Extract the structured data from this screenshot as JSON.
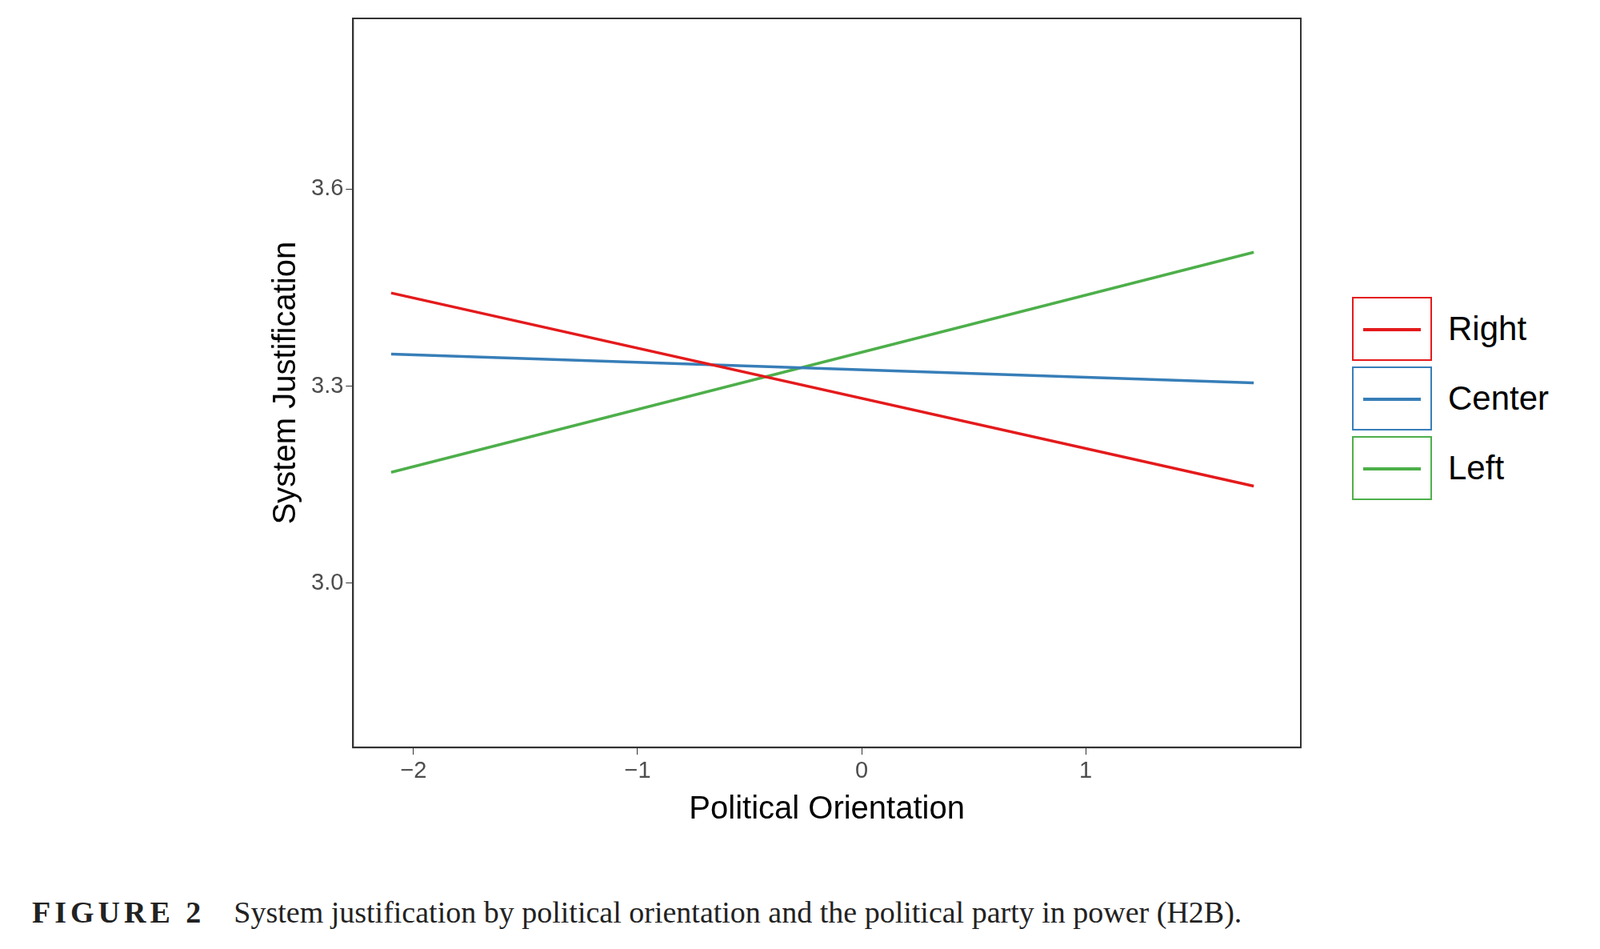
{
  "chart_data": {
    "type": "line",
    "figure_label": "FIGURE 2",
    "title": "System justification by political orientation and the political party in power (H2B).",
    "x_label": "Political Orientation",
    "y_label": "System Justification",
    "x": [
      -2.1,
      1.75
    ],
    "series": [
      {
        "name": "Right",
        "color": "#e41a1c",
        "values": [
          3.442,
          3.148
        ]
      },
      {
        "name": "Center",
        "color": "#377eb8",
        "values": [
          3.349,
          3.305
        ]
      },
      {
        "name": "Left",
        "color": "#4daf4a",
        "values": [
          3.169,
          3.504
        ]
      }
    ],
    "xlim": [
      -2.27,
      1.96
    ],
    "xticks": [
      {
        "value": -2,
        "label": "−2"
      },
      {
        "value": -1,
        "label": "−1"
      },
      0,
      1
    ],
    "ylim": [
      2.75,
      3.86
    ],
    "yticks": [
      {
        "value": 3,
        "label": "3.0"
      },
      3.3,
      3.6
    ],
    "grid": false,
    "legend": "right"
  }
}
